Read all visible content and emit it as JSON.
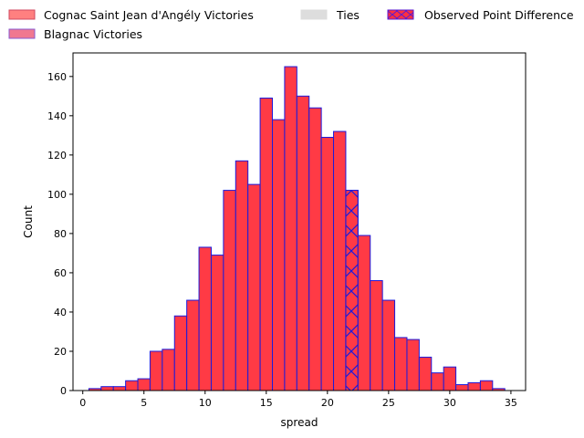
{
  "chart_data": {
    "type": "bar",
    "xlabel": "spread",
    "ylabel": "Count",
    "xlim": [
      -0.8,
      36.2
    ],
    "ylim": [
      0,
      172
    ],
    "xticks": [
      0,
      5,
      10,
      15,
      20,
      25,
      30,
      35
    ],
    "yticks": [
      0,
      20,
      40,
      60,
      80,
      100,
      120,
      140,
      160
    ],
    "bin_width": 1,
    "legend": {
      "placement": "top-left-outside",
      "entries": [
        {
          "label": "Cognac Saint Jean d'Angély Victories",
          "color": "#ff8080",
          "edge": "#d04a60"
        },
        {
          "label": "Blagnac Victories",
          "color": "#f07890",
          "edge": "#8a5ad0"
        },
        {
          "label": "Ties",
          "color": "#dddddd",
          "edge": "#dddddd"
        },
        {
          "label": "Observed Point Difference",
          "color": "#ff3040",
          "edge": "#5a1ad0",
          "hatch": "x"
        }
      ]
    },
    "series": [
      {
        "name": "Cognac Saint Jean d'Angély Victories",
        "color": "#ff3a45",
        "edge": "#1a1adc",
        "bins": [
          {
            "x": 0.5,
            "count": 1
          },
          {
            "x": 1.5,
            "count": 2
          },
          {
            "x": 2.5,
            "count": 2
          },
          {
            "x": 3.5,
            "count": 5
          },
          {
            "x": 4.5,
            "count": 6
          },
          {
            "x": 5.5,
            "count": 20
          },
          {
            "x": 6.5,
            "count": 21
          },
          {
            "x": 7.5,
            "count": 38
          },
          {
            "x": 8.5,
            "count": 46
          },
          {
            "x": 9.5,
            "count": 73
          },
          {
            "x": 10.5,
            "count": 69
          },
          {
            "x": 11.5,
            "count": 102
          },
          {
            "x": 12.5,
            "count": 117
          },
          {
            "x": 13.5,
            "count": 105
          },
          {
            "x": 14.5,
            "count": 149
          },
          {
            "x": 15.5,
            "count": 138
          },
          {
            "x": 16.5,
            "count": 165
          },
          {
            "x": 17.5,
            "count": 150
          },
          {
            "x": 18.5,
            "count": 144
          },
          {
            "x": 19.5,
            "count": 129
          },
          {
            "x": 20.5,
            "count": 132
          },
          {
            "x": 21.5,
            "count": 102,
            "observed": true
          },
          {
            "x": 22.5,
            "count": 79
          },
          {
            "x": 23.5,
            "count": 56
          },
          {
            "x": 24.5,
            "count": 46
          },
          {
            "x": 25.5,
            "count": 27
          },
          {
            "x": 26.5,
            "count": 26
          },
          {
            "x": 27.5,
            "count": 17
          },
          {
            "x": 28.5,
            "count": 9
          },
          {
            "x": 29.5,
            "count": 12
          },
          {
            "x": 30.5,
            "count": 3
          },
          {
            "x": 31.5,
            "count": 4
          },
          {
            "x": 32.5,
            "count": 5
          },
          {
            "x": 33.5,
            "count": 1
          }
        ]
      }
    ]
  }
}
